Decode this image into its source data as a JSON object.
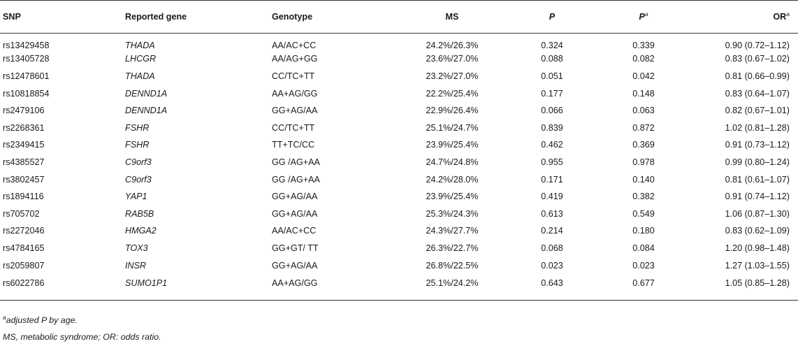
{
  "table": {
    "headers": {
      "snp": "SNP",
      "gene": "Reported gene",
      "genotype": "Genotype",
      "ms": "MS",
      "p": "P",
      "pa": "P",
      "pa_sup": "a",
      "or": "OR",
      "or_sup": "a"
    },
    "rows": [
      {
        "snp": "rs13429458",
        "gene": "THADA",
        "genotype": "AA/AC+CC",
        "ms": "24.2%/26.3%",
        "p": "0.324",
        "pa": "0.339",
        "or": "0.90 (0.72–1.12)"
      },
      {
        "snp": "rs13405728",
        "gene": "LHCGR",
        "genotype": "AA/AG+GG",
        "ms": "23.6%/27.0%",
        "p": "0.088",
        "pa": "0.082",
        "or": "0.83 (0.67–1.02)"
      },
      {
        "snp": "rs12478601",
        "gene": "THADA",
        "genotype": "CC/TC+TT",
        "ms": "23.2%/27.0%",
        "p": "0.051",
        "pa": "0.042",
        "or": "0.81 (0.66–0.99)"
      },
      {
        "snp": "rs10818854",
        "gene": "DENND1A",
        "genotype": "AA+AG/GG",
        "ms": "22.2%/25.4%",
        "p": "0.177",
        "pa": "0.148",
        "or": "0.83 (0.64–1.07)"
      },
      {
        "snp": "rs2479106",
        "gene": "DENND1A",
        "genotype": "GG+AG/AA",
        "ms": "22.9%/26.4%",
        "p": "0.066",
        "pa": "0.063",
        "or": "0.82 (0.67–1.01)"
      },
      {
        "snp": "rs2268361",
        "gene": "FSHR",
        "genotype": "CC/TC+TT",
        "ms": "25.1%/24.7%",
        "p": "0.839",
        "pa": "0.872",
        "or": "1.02 (0.81–1.28)"
      },
      {
        "snp": "rs2349415",
        "gene": "FSHR",
        "genotype": "TT+TC/CC",
        "ms": "23.9%/25.4%",
        "p": "0.462",
        "pa": "0.369",
        "or": "0.91 (0.73–1.12)"
      },
      {
        "snp": "rs4385527",
        "gene": "C9orf3",
        "genotype": "GG /AG+AA",
        "ms": "24.7%/24.8%",
        "p": "0.955",
        "pa": "0.978",
        "or": "0.99 (0.80–1.24)"
      },
      {
        "snp": "rs3802457",
        "gene": "C9orf3",
        "genotype": "GG /AG+AA",
        "ms": "24.2%/28.0%",
        "p": "0.171",
        "pa": "0.140",
        "or": "0.81 (0.61–1.07)"
      },
      {
        "snp": "rs1894116",
        "gene": "YAP1",
        "genotype": "GG+AG/AA",
        "ms": "23.9%/25.4%",
        "p": "0.419",
        "pa": "0.382",
        "or": "0.91 (0.74–1.12)"
      },
      {
        "snp": "rs705702",
        "gene": "RAB5B",
        "genotype": "GG+AG/AA",
        "ms": "25.3%/24.3%",
        "p": "0.613",
        "pa": "0.549",
        "or": "1.06 (0.87–1.30)"
      },
      {
        "snp": "rs2272046",
        "gene": "HMGA2",
        "genotype": "AA/AC+CC",
        "ms": "24.3%/27.7%",
        "p": "0.214",
        "pa": "0.180",
        "or": "0.83 (0.62–1.09)"
      },
      {
        "snp": "rs4784165",
        "gene": "TOX3",
        "genotype": "GG+GT/ TT",
        "ms": "26.3%/22.7%",
        "p": "0.068",
        "pa": "0.084",
        "or": "1.20 (0.98–1.48)"
      },
      {
        "snp": "rs2059807",
        "gene": "INSR",
        "genotype": "GG+AG/AA",
        "ms": "26.8%/22.5%",
        "p": "0.023",
        "pa": "0.023",
        "or": "1.27 (1.03–1.55)"
      },
      {
        "snp": "rs6022786",
        "gene": "SUMO1P1",
        "genotype": "AA+AG/GG",
        "ms": "25.1%/24.2%",
        "p": "0.643",
        "pa": "0.677",
        "or": "1.05 (0.85–1.28)"
      }
    ]
  },
  "footnotes": {
    "note1_sup": "a",
    "note1": "adjusted P by age.",
    "note2": "MS, metabolic syndrome; OR: odds ratio."
  }
}
